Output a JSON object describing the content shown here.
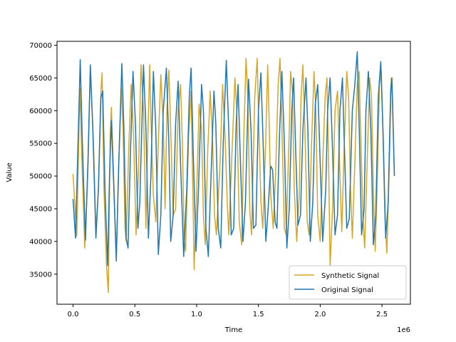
{
  "chart_data": {
    "type": "line",
    "xlabel": "Time",
    "ylabel": "Value",
    "x_offset_label": "1e6",
    "xlim": [
      -0.13,
      2.73
    ],
    "ylim": [
      30400,
      70600
    ],
    "x_ticks": [
      0.0,
      0.5,
      1.0,
      1.5,
      2.0,
      2.5
    ],
    "x_tick_labels": [
      "0.0",
      "0.5",
      "1.0",
      "1.5",
      "2.0",
      "2.5"
    ],
    "y_ticks": [
      35000,
      40000,
      45000,
      50000,
      55000,
      60000,
      65000,
      70000
    ],
    "y_tick_labels": [
      "35000",
      "40000",
      "45000",
      "50000",
      "55000",
      "60000",
      "65000",
      "70000"
    ],
    "grid": false,
    "legend_position": "lower-right",
    "series": [
      {
        "name": "Synthetic Signal",
        "color": "#DAA520",
        "points": [
          [
            0.0,
            50300
          ],
          [
            0.03,
            40800
          ],
          [
            0.055,
            63500
          ],
          [
            0.075,
            50000
          ],
          [
            0.095,
            39000
          ],
          [
            0.12,
            51000
          ],
          [
            0.14,
            66500
          ],
          [
            0.165,
            55000
          ],
          [
            0.185,
            41500
          ],
          [
            0.205,
            48000
          ],
          [
            0.225,
            63000
          ],
          [
            0.235,
            65800
          ],
          [
            0.25,
            48000
          ],
          [
            0.27,
            36500
          ],
          [
            0.285,
            32200
          ],
          [
            0.3,
            56000
          ],
          [
            0.31,
            60500
          ],
          [
            0.33,
            49000
          ],
          [
            0.35,
            37500
          ],
          [
            0.37,
            52000
          ],
          [
            0.39,
            63500
          ],
          [
            0.405,
            57000
          ],
          [
            0.42,
            42000
          ],
          [
            0.43,
            40000
          ],
          [
            0.45,
            54000
          ],
          [
            0.47,
            64000
          ],
          [
            0.49,
            56000
          ],
          [
            0.51,
            41000
          ],
          [
            0.53,
            51000
          ],
          [
            0.55,
            67000
          ],
          [
            0.57,
            60000
          ],
          [
            0.59,
            42000
          ],
          [
            0.6,
            52000
          ],
          [
            0.62,
            67000
          ],
          [
            0.63,
            59000
          ],
          [
            0.65,
            47000
          ],
          [
            0.67,
            43000
          ],
          [
            0.69,
            55000
          ],
          [
            0.71,
            65500
          ],
          [
            0.73,
            58000
          ],
          [
            0.745,
            45000
          ],
          [
            0.76,
            60000
          ],
          [
            0.775,
            66200
          ],
          [
            0.79,
            57000
          ],
          [
            0.81,
            44000
          ],
          [
            0.83,
            45000
          ],
          [
            0.85,
            60000
          ],
          [
            0.87,
            64000
          ],
          [
            0.885,
            55000
          ],
          [
            0.9,
            40000
          ],
          [
            0.91,
            38500
          ],
          [
            0.935,
            56000
          ],
          [
            0.955,
            63000
          ],
          [
            0.97,
            47000
          ],
          [
            0.98,
            35700
          ],
          [
            1.0,
            47000
          ],
          [
            1.02,
            61000
          ],
          [
            1.04,
            57000
          ],
          [
            1.055,
            44000
          ],
          [
            1.07,
            39500
          ],
          [
            1.09,
            54000
          ],
          [
            1.11,
            63000
          ],
          [
            1.13,
            55000
          ],
          [
            1.145,
            44000
          ],
          [
            1.16,
            41000
          ],
          [
            1.19,
            52000
          ],
          [
            1.21,
            64000
          ],
          [
            1.23,
            56000
          ],
          [
            1.25,
            45000
          ],
          [
            1.26,
            41000
          ],
          [
            1.285,
            53000
          ],
          [
            1.31,
            65000
          ],
          [
            1.325,
            60000
          ],
          [
            1.345,
            43000
          ],
          [
            1.365,
            39500
          ],
          [
            1.38,
            55000
          ],
          [
            1.4,
            68000
          ],
          [
            1.415,
            62000
          ],
          [
            1.43,
            45000
          ],
          [
            1.445,
            41000
          ],
          [
            1.47,
            62000
          ],
          [
            1.49,
            68000
          ],
          [
            1.5,
            60000
          ],
          [
            1.52,
            46000
          ],
          [
            1.535,
            42000
          ],
          [
            1.56,
            56000
          ],
          [
            1.575,
            67000
          ],
          [
            1.585,
            60000
          ],
          [
            1.6,
            47000
          ],
          [
            1.62,
            42000
          ],
          [
            1.64,
            51000
          ],
          [
            1.66,
            64000
          ],
          [
            1.675,
            68000
          ],
          [
            1.69,
            58000
          ],
          [
            1.71,
            42000
          ],
          [
            1.725,
            41000
          ],
          [
            1.75,
            57000
          ],
          [
            1.76,
            66000
          ],
          [
            1.775,
            63000
          ],
          [
            1.79,
            48000
          ],
          [
            1.81,
            40000
          ],
          [
            1.83,
            47000
          ],
          [
            1.845,
            62000
          ],
          [
            1.86,
            67000
          ],
          [
            1.875,
            58000
          ],
          [
            1.895,
            43000
          ],
          [
            1.91,
            41000
          ],
          [
            1.93,
            55000
          ],
          [
            1.95,
            66000
          ],
          [
            1.965,
            60000
          ],
          [
            1.98,
            44000
          ],
          [
            2.0,
            40000
          ],
          [
            2.02,
            52000
          ],
          [
            2.04,
            62000
          ],
          [
            2.055,
            65000
          ],
          [
            2.07,
            50000
          ],
          [
            2.08,
            36200
          ],
          [
            2.1,
            45000
          ],
          [
            2.12,
            60000
          ],
          [
            2.14,
            63000
          ],
          [
            2.16,
            50000
          ],
          [
            2.175,
            41500
          ],
          [
            2.195,
            55000
          ],
          [
            2.215,
            66000
          ],
          [
            2.23,
            62000
          ],
          [
            2.245,
            48000
          ],
          [
            2.26,
            40500
          ],
          [
            2.28,
            52000
          ],
          [
            2.3,
            64000
          ],
          [
            2.315,
            66000
          ],
          [
            2.33,
            55000
          ],
          [
            2.345,
            44000
          ],
          [
            2.36,
            39000
          ],
          [
            2.38,
            52000
          ],
          [
            2.4,
            65000
          ],
          [
            2.415,
            62000
          ],
          [
            2.43,
            48000
          ],
          [
            2.445,
            38500
          ],
          [
            2.46,
            48000
          ],
          [
            2.48,
            64000
          ],
          [
            2.495,
            66000
          ],
          [
            2.51,
            55000
          ],
          [
            2.525,
            43000
          ],
          [
            2.54,
            38200
          ],
          [
            2.56,
            52000
          ],
          [
            2.575,
            65000
          ],
          [
            2.585,
            62000
          ],
          [
            2.6,
            50200
          ]
        ]
      },
      {
        "name": "Original Signal",
        "color": "#1F77B4",
        "points": [
          [
            0.0,
            46500
          ],
          [
            0.02,
            40500
          ],
          [
            0.04,
            55000
          ],
          [
            0.058,
            67800
          ],
          [
            0.075,
            55000
          ],
          [
            0.1,
            40200
          ],
          [
            0.12,
            52000
          ],
          [
            0.14,
            67000
          ],
          [
            0.16,
            57000
          ],
          [
            0.185,
            40500
          ],
          [
            0.205,
            48000
          ],
          [
            0.225,
            62000
          ],
          [
            0.24,
            63000
          ],
          [
            0.26,
            47000
          ],
          [
            0.28,
            36300
          ],
          [
            0.295,
            50000
          ],
          [
            0.31,
            58500
          ],
          [
            0.33,
            48000
          ],
          [
            0.35,
            37000
          ],
          [
            0.37,
            52000
          ],
          [
            0.395,
            67200
          ],
          [
            0.41,
            58000
          ],
          [
            0.43,
            40500
          ],
          [
            0.445,
            39000
          ],
          [
            0.465,
            54000
          ],
          [
            0.485,
            66000
          ],
          [
            0.505,
            58000
          ],
          [
            0.525,
            42000
          ],
          [
            0.54,
            46000
          ],
          [
            0.57,
            67000
          ],
          [
            0.59,
            57000
          ],
          [
            0.61,
            40500
          ],
          [
            0.63,
            50000
          ],
          [
            0.65,
            66000
          ],
          [
            0.67,
            57000
          ],
          [
            0.69,
            38000
          ],
          [
            0.71,
            44000
          ],
          [
            0.73,
            60000
          ],
          [
            0.755,
            66500
          ],
          [
            0.775,
            55000
          ],
          [
            0.79,
            40000
          ],
          [
            0.81,
            44000
          ],
          [
            0.83,
            58000
          ],
          [
            0.85,
            64500
          ],
          [
            0.87,
            52000
          ],
          [
            0.895,
            37700
          ],
          [
            0.92,
            48000
          ],
          [
            0.94,
            62000
          ],
          [
            0.955,
            66500
          ],
          [
            0.975,
            52000
          ],
          [
            0.995,
            38500
          ],
          [
            1.015,
            48000
          ],
          [
            1.04,
            64000
          ],
          [
            1.055,
            60000
          ],
          [
            1.075,
            42000
          ],
          [
            1.095,
            37700
          ],
          [
            1.12,
            52000
          ],
          [
            1.14,
            63000
          ],
          [
            1.155,
            58000
          ],
          [
            1.175,
            42000
          ],
          [
            1.195,
            39000
          ],
          [
            1.215,
            55000
          ],
          [
            1.24,
            67700
          ],
          [
            1.26,
            57000
          ],
          [
            1.28,
            41000
          ],
          [
            1.3,
            42000
          ],
          [
            1.32,
            58000
          ],
          [
            1.335,
            64000
          ],
          [
            1.355,
            52000
          ],
          [
            1.375,
            40000
          ],
          [
            1.395,
            46000
          ],
          [
            1.42,
            64800
          ],
          [
            1.44,
            57000
          ],
          [
            1.46,
            42000
          ],
          [
            1.48,
            42500
          ],
          [
            1.5,
            60000
          ],
          [
            1.52,
            65800
          ],
          [
            1.54,
            54000
          ],
          [
            1.56,
            40000
          ],
          [
            1.575,
            44000
          ],
          [
            1.6,
            51500
          ],
          [
            1.615,
            51000
          ],
          [
            1.635,
            43000
          ],
          [
            1.65,
            42000
          ],
          [
            1.67,
            56000
          ],
          [
            1.69,
            66000
          ],
          [
            1.71,
            55000
          ],
          [
            1.73,
            39000
          ],
          [
            1.75,
            45000
          ],
          [
            1.77,
            60000
          ],
          [
            1.785,
            65000
          ],
          [
            1.8,
            55000
          ],
          [
            1.82,
            42500
          ],
          [
            1.84,
            44000
          ],
          [
            1.86,
            57000
          ],
          [
            1.885,
            65000
          ],
          [
            1.9,
            57000
          ],
          [
            1.92,
            40000
          ],
          [
            1.94,
            46000
          ],
          [
            1.96,
            61000
          ],
          [
            1.98,
            64000
          ],
          [
            2.0,
            52000
          ],
          [
            2.02,
            40000
          ],
          [
            2.045,
            48000
          ],
          [
            2.06,
            60000
          ],
          [
            2.08,
            65000
          ],
          [
            2.1,
            54000
          ],
          [
            2.12,
            41000
          ],
          [
            2.14,
            44000
          ],
          [
            2.16,
            60000
          ],
          [
            2.18,
            65000
          ],
          [
            2.195,
            55000
          ],
          [
            2.215,
            42000
          ],
          [
            2.235,
            43500
          ],
          [
            2.26,
            60000
          ],
          [
            2.28,
            64000
          ],
          [
            2.3,
            69000
          ],
          [
            2.315,
            58000
          ],
          [
            2.335,
            41000
          ],
          [
            2.355,
            45000
          ],
          [
            2.37,
            60000
          ],
          [
            2.39,
            66000
          ],
          [
            2.41,
            57000
          ],
          [
            2.43,
            39500
          ],
          [
            2.45,
            44000
          ],
          [
            2.47,
            62000
          ],
          [
            2.49,
            67500
          ],
          [
            2.51,
            56000
          ],
          [
            2.53,
            40500
          ],
          [
            2.55,
            46000
          ],
          [
            2.57,
            63000
          ],
          [
            2.58,
            65000
          ],
          [
            2.6,
            50000
          ]
        ]
      }
    ]
  }
}
